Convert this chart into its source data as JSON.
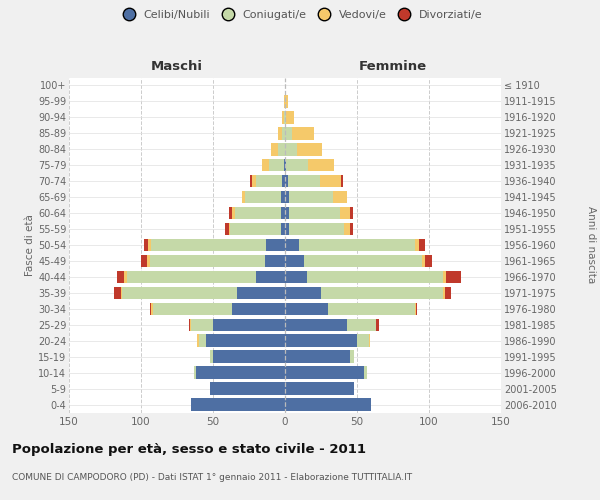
{
  "age_groups": [
    "0-4",
    "5-9",
    "10-14",
    "15-19",
    "20-24",
    "25-29",
    "30-34",
    "35-39",
    "40-44",
    "45-49",
    "50-54",
    "55-59",
    "60-64",
    "65-69",
    "70-74",
    "75-79",
    "80-84",
    "85-89",
    "90-94",
    "95-99",
    "100+"
  ],
  "birth_years": [
    "2006-2010",
    "2001-2005",
    "1996-2000",
    "1991-1995",
    "1986-1990",
    "1981-1985",
    "1976-1980",
    "1971-1975",
    "1966-1970",
    "1961-1965",
    "1956-1960",
    "1951-1955",
    "1946-1950",
    "1941-1945",
    "1936-1940",
    "1931-1935",
    "1926-1930",
    "1921-1925",
    "1916-1920",
    "1911-1915",
    "≤ 1910"
  ],
  "maschi": {
    "celibi": [
      65,
      52,
      62,
      50,
      55,
      50,
      37,
      33,
      20,
      14,
      13,
      3,
      3,
      3,
      2,
      1,
      0,
      0,
      0,
      0,
      0
    ],
    "coniugati": [
      0,
      0,
      1,
      2,
      5,
      15,
      55,
      80,
      90,
      80,
      80,
      35,
      32,
      25,
      18,
      10,
      5,
      2,
      1,
      0,
      0
    ],
    "vedovi": [
      0,
      0,
      0,
      0,
      1,
      1,
      1,
      1,
      2,
      2,
      2,
      1,
      2,
      2,
      3,
      5,
      5,
      3,
      1,
      1,
      0
    ],
    "divorziati": [
      0,
      0,
      0,
      0,
      0,
      1,
      1,
      5,
      5,
      4,
      3,
      3,
      2,
      0,
      1,
      0,
      0,
      0,
      0,
      0,
      0
    ]
  },
  "femmine": {
    "nubili": [
      60,
      48,
      55,
      45,
      50,
      43,
      30,
      25,
      15,
      13,
      10,
      3,
      3,
      3,
      2,
      1,
      0,
      0,
      0,
      0,
      0
    ],
    "coniugate": [
      0,
      0,
      2,
      3,
      8,
      20,
      60,
      85,
      95,
      82,
      80,
      38,
      35,
      30,
      22,
      15,
      8,
      5,
      1,
      0,
      0
    ],
    "vedove": [
      0,
      0,
      0,
      0,
      1,
      0,
      1,
      1,
      2,
      2,
      3,
      4,
      7,
      10,
      15,
      18,
      18,
      15,
      5,
      2,
      0
    ],
    "divorziate": [
      0,
      0,
      0,
      0,
      0,
      2,
      1,
      4,
      10,
      5,
      4,
      2,
      2,
      0,
      1,
      0,
      0,
      0,
      0,
      0,
      0
    ]
  },
  "colors": {
    "celibi_nubili": "#4e6fa3",
    "coniugati": "#c5d9a8",
    "vedovi": "#f5c96a",
    "divorziati": "#c0392b"
  },
  "xlim": 150,
  "title": "Popolazione per età, sesso e stato civile - 2011",
  "subtitle": "COMUNE DI CAMPODORO (PD) - Dati ISTAT 1° gennaio 2011 - Elaborazione TUTTITALIA.IT",
  "ylabel_left": "Fasce di età",
  "ylabel_right": "Anni di nascita",
  "xlabel_left": "Maschi",
  "xlabel_right": "Femmine",
  "background_color": "#f0f0f0",
  "plot_bg": "#ffffff"
}
